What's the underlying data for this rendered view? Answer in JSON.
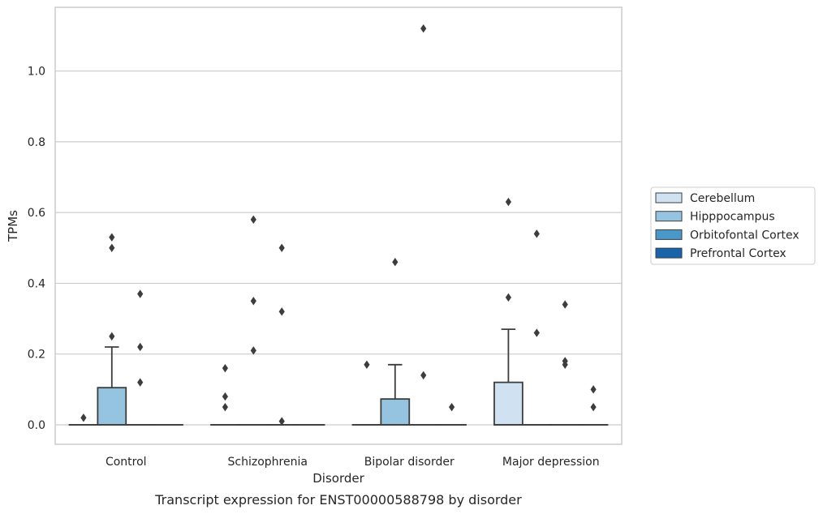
{
  "chart_data": {
    "type": "box",
    "caption": "Transcript expression for ENST00000588798 by disorder",
    "xlabel": "Disorder",
    "ylabel": "TPMs",
    "ylim": [
      -0.055,
      1.18
    ],
    "yticks": [
      "0.0",
      "0.2",
      "0.4",
      "0.6",
      "0.8",
      "1.0"
    ],
    "grid": "horizontal",
    "legend_position": "right-center",
    "categories": [
      "Control",
      "Schizophrenia",
      "Bipolar disorder",
      "Major depression"
    ],
    "series": [
      {
        "name": "Cerebellum",
        "color": "#d0e1f2",
        "boxes": [
          {
            "q1": 0,
            "median": 0,
            "q3": 0,
            "whisker_low": 0,
            "whisker_high": 0,
            "outliers": [
              0.02
            ]
          },
          {
            "q1": 0,
            "median": 0,
            "q3": 0,
            "whisker_low": 0,
            "whisker_high": 0,
            "outliers": [
              0.16,
              0.08,
              0.05
            ]
          },
          {
            "q1": 0,
            "median": 0,
            "q3": 0,
            "whisker_low": 0,
            "whisker_high": 0,
            "outliers": [
              0.17
            ]
          },
          {
            "q1": 0,
            "median": 0,
            "q3": 0.12,
            "whisker_low": 0,
            "whisker_high": 0.27,
            "outliers": [
              0.63,
              0.36
            ]
          }
        ]
      },
      {
        "name": "Hipppocampus",
        "color": "#94c4df",
        "boxes": [
          {
            "q1": 0,
            "median": 0,
            "q3": 0.105,
            "whisker_low": 0,
            "whisker_high": 0.22,
            "outliers": [
              0.53,
              0.5,
              0.25
            ]
          },
          {
            "q1": 0,
            "median": 0,
            "q3": 0,
            "whisker_low": 0,
            "whisker_high": 0,
            "outliers": [
              0.58,
              0.35,
              0.21
            ]
          },
          {
            "q1": 0,
            "median": 0,
            "q3": 0.073,
            "whisker_low": 0,
            "whisker_high": 0.17,
            "outliers": [
              0.46
            ]
          },
          {
            "q1": 0,
            "median": 0,
            "q3": 0,
            "whisker_low": 0,
            "whisker_high": 0,
            "outliers": [
              0.54,
              0.26
            ]
          }
        ]
      },
      {
        "name": "Orbitofontal Cortex",
        "color": "#4a98c9",
        "boxes": [
          {
            "q1": 0,
            "median": 0,
            "q3": 0,
            "whisker_low": 0,
            "whisker_high": 0,
            "outliers": [
              0.37,
              0.22,
              0.12
            ]
          },
          {
            "q1": 0,
            "median": 0,
            "q3": 0,
            "whisker_low": 0,
            "whisker_high": 0,
            "outliers": [
              0.5,
              0.32,
              0.01
            ]
          },
          {
            "q1": 0,
            "median": 0,
            "q3": 0,
            "whisker_low": 0,
            "whisker_high": 0,
            "outliers": [
              1.12,
              0.14
            ]
          },
          {
            "q1": 0,
            "median": 0,
            "q3": 0,
            "whisker_low": 0,
            "whisker_high": 0,
            "outliers": [
              0.34,
              0.18,
              0.17
            ]
          }
        ]
      },
      {
        "name": "Prefrontal Cortex",
        "color": "#1764ab",
        "boxes": [
          {
            "q1": 0,
            "median": 0,
            "q3": 0,
            "whisker_low": 0,
            "whisker_high": 0,
            "outliers": []
          },
          {
            "q1": 0,
            "median": 0,
            "q3": 0,
            "whisker_low": 0,
            "whisker_high": 0,
            "outliers": []
          },
          {
            "q1": 0,
            "median": 0,
            "q3": 0,
            "whisker_low": 0,
            "whisker_high": 0,
            "outliers": [
              0.05
            ]
          },
          {
            "q1": 0,
            "median": 0,
            "q3": 0,
            "whisker_low": 0,
            "whisker_high": 0,
            "outliers": [
              0.1,
              0.05
            ]
          }
        ]
      }
    ]
  }
}
